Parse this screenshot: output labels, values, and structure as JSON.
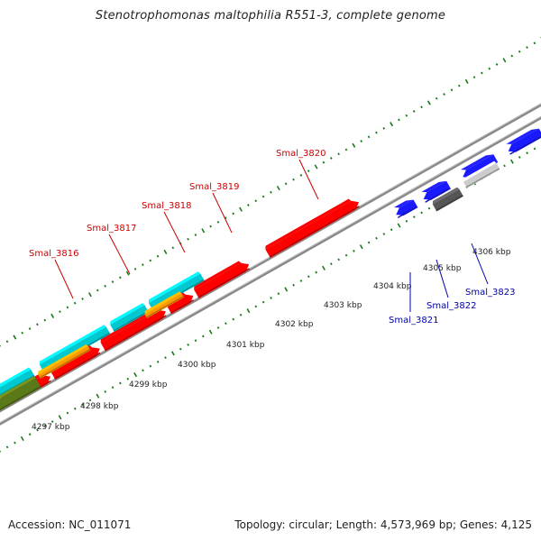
{
  "title": "Stenotrophomonas maltophilia R551-3, complete genome",
  "footer": {
    "accession": "Accession: NC_011071",
    "stats": "Topology: circular; Length: 4,573,969 bp; Genes: 4,125"
  },
  "colors": {
    "forward_cds": "#ff0000",
    "reverse_cds": "#1a1aff",
    "gene_cyan": "#00c8d0",
    "gene_orange": "#ff9900",
    "gene_olive": "#5a7a1a",
    "gene_grey_dark": "#555555",
    "gene_grey_light": "#cccccc",
    "gene_slate": "#3a3a8a",
    "tick_mark": "#1a7a1a",
    "backbone": "#888888",
    "forward_label": "#cc0000",
    "reverse_label": "#0000aa"
  },
  "scale_labels": [
    "4297 kbp",
    "4298 kbp",
    "4299 kbp",
    "4300 kbp",
    "4301 kbp",
    "4302 kbp",
    "4303 kbp",
    "4304 kbp",
    "4305 kbp",
    "4306 kbp"
  ],
  "gene_labels": {
    "forward": [
      "Smal_3816",
      "Smal_3817",
      "Smal_3818",
      "Smal_3819",
      "Smal_3820"
    ],
    "reverse": [
      "Smal_3821",
      "Smal_3822",
      "Smal_3823"
    ]
  }
}
